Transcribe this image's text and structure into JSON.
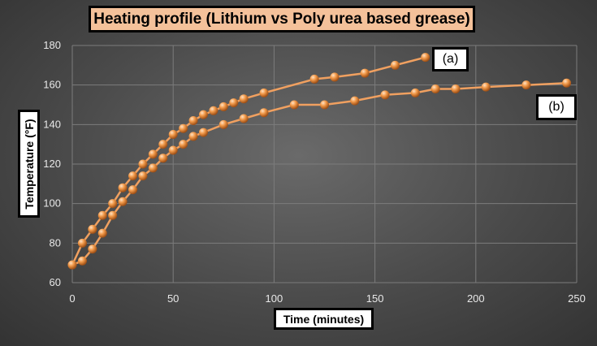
{
  "chart_data": {
    "type": "line",
    "title": "Heating profile (Lithium vs Poly urea based grease)",
    "xlabel": "Time  (minutes)",
    "ylabel": "Temperature (°F)",
    "xlim": [
      0,
      250
    ],
    "ylim": [
      60,
      180
    ],
    "xticks": [
      0,
      50,
      100,
      150,
      200,
      250
    ],
    "yticks": [
      60,
      80,
      100,
      120,
      140,
      160,
      180
    ],
    "grid": true,
    "colors": {
      "line": "#f0a060",
      "marker": "#f29a4a"
    },
    "series": [
      {
        "label": "(a)",
        "x": [
          0,
          5,
          10,
          15,
          20,
          25,
          30,
          35,
          40,
          45,
          50,
          55,
          60,
          65,
          70,
          75,
          80,
          85,
          95,
          120,
          130,
          145,
          160,
          175
        ],
        "y": [
          69,
          80,
          87,
          94,
          100,
          108,
          114,
          120,
          125,
          130,
          135,
          138,
          142,
          145,
          147,
          149,
          151,
          153,
          156,
          163,
          164,
          166,
          170,
          174
        ]
      },
      {
        "label": "(b)",
        "x": [
          0,
          5,
          10,
          15,
          20,
          25,
          30,
          35,
          40,
          45,
          50,
          55,
          60,
          65,
          75,
          85,
          95,
          110,
          125,
          140,
          155,
          170,
          180,
          190,
          205,
          225,
          245
        ],
        "y": [
          69,
          71,
          77,
          85,
          94,
          101,
          107,
          114,
          118,
          123,
          127,
          130,
          134,
          136,
          140,
          143,
          146,
          150,
          150,
          152,
          155,
          156,
          158,
          158,
          159,
          160,
          161
        ]
      }
    ]
  }
}
